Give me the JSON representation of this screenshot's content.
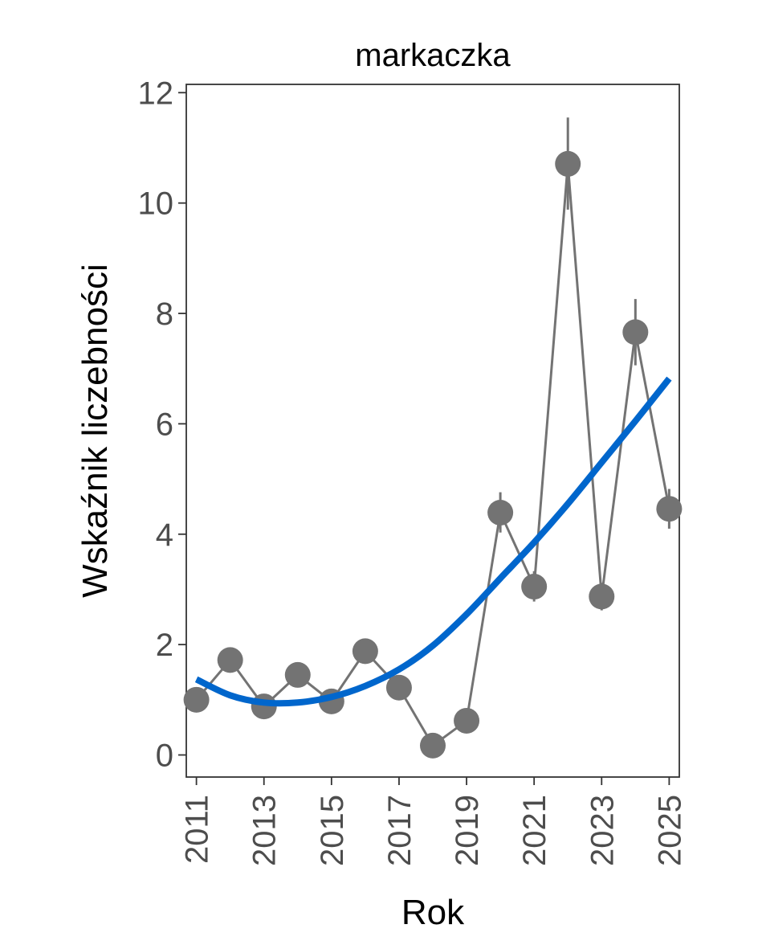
{
  "chart_data": {
    "type": "line",
    "title": "markaczka",
    "xlabel": "Rok",
    "ylabel": "Wskaźnik liczebności",
    "xlim": [
      2010.7,
      2025.3
    ],
    "ylim": [
      -0.4,
      12.15
    ],
    "x_ticks": [
      2011,
      2013,
      2015,
      2017,
      2019,
      2021,
      2023,
      2025
    ],
    "y_ticks": [
      0,
      2,
      4,
      6,
      8,
      10,
      12
    ],
    "grid": false,
    "legend": "none",
    "series": [
      {
        "role": "observed",
        "color": "#737373",
        "x": [
          2011,
          2012,
          2013,
          2014,
          2015,
          2016,
          2017,
          2018,
          2019,
          2020,
          2021,
          2022,
          2023,
          2024,
          2025
        ],
        "y": [
          1.0,
          1.72,
          0.88,
          1.45,
          0.97,
          1.88,
          1.22,
          0.17,
          0.62,
          4.39,
          3.05,
          10.71,
          2.87,
          7.66,
          4.46
        ],
        "y_low": [
          1.0,
          1.72,
          0.88,
          1.45,
          0.97,
          1.88,
          1.22,
          0.17,
          0.62,
          4.03,
          2.78,
          9.88,
          2.62,
          7.06,
          4.1
        ],
        "y_high": [
          1.0,
          1.72,
          0.88,
          1.45,
          0.97,
          1.88,
          1.22,
          0.17,
          0.62,
          4.76,
          3.33,
          11.55,
          3.12,
          8.26,
          4.82
        ]
      },
      {
        "role": "trend",
        "color": "#0066cc",
        "x": [
          2011,
          2012,
          2013,
          2014,
          2015,
          2016,
          2017,
          2018,
          2019,
          2020,
          2021,
          2022,
          2023,
          2024,
          2025
        ],
        "y": [
          1.37,
          1.08,
          0.95,
          0.95,
          1.05,
          1.25,
          1.55,
          1.98,
          2.55,
          3.2,
          3.85,
          4.55,
          5.3,
          6.05,
          6.82
        ]
      }
    ]
  }
}
